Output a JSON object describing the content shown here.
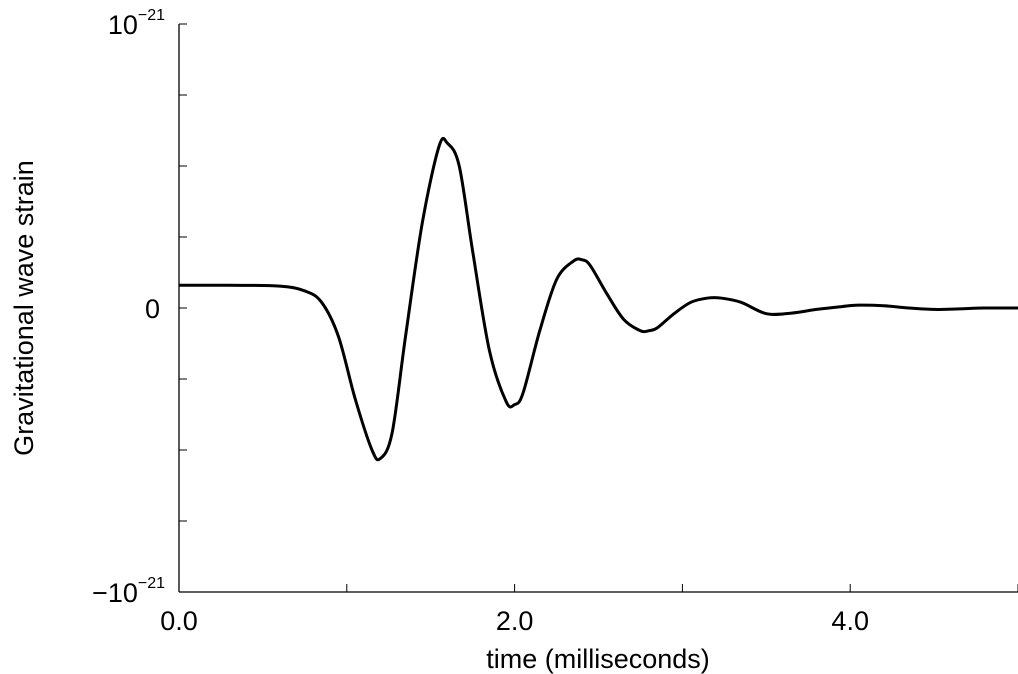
{
  "chart_data": {
    "type": "line",
    "title": "",
    "xlabel": "time (milliseconds)",
    "ylabel": "Gravitational wave strain",
    "xlim": [
      0.0,
      5.0
    ],
    "ylim": [
      -1e-21,
      1e-21
    ],
    "x_tick_labels": [
      {
        "value": 0.0,
        "label": "0.0"
      },
      {
        "value": 2.0,
        "label": "2.0"
      },
      {
        "value": 4.0,
        "label": "4.0"
      }
    ],
    "y_tick_labels": [
      {
        "value": 1e-21,
        "base": "10",
        "exponent": "−21"
      },
      {
        "value": 0,
        "base": "0",
        "exponent": ""
      },
      {
        "value": -1e-21,
        "base": "−10",
        "exponent": "−21"
      }
    ],
    "x_minor_ticks": [
      0.0,
      1.0,
      2.0,
      3.0,
      4.0,
      5.0
    ],
    "y_minor_ticks": [
      -1e-21,
      -7.5e-22,
      -5e-22,
      -2.5e-22,
      0,
      2.5e-22,
      5e-22,
      7.5e-22,
      1e-21
    ],
    "grid": false,
    "series": [
      {
        "color": "#000000",
        "x": [
          0.0,
          0.3,
          0.6,
          0.75,
          0.85,
          0.95,
          1.05,
          1.15,
          1.2,
          1.27,
          1.35,
          1.45,
          1.55,
          1.6,
          1.67,
          1.75,
          1.85,
          1.95,
          2.0,
          2.05,
          2.15,
          2.25,
          2.35,
          2.4,
          2.45,
          2.55,
          2.65,
          2.75,
          2.8,
          2.85,
          2.95,
          3.05,
          3.15,
          3.23,
          3.35,
          3.5,
          3.65,
          3.8,
          3.95,
          4.05,
          4.2,
          4.35,
          4.5,
          4.65,
          4.8,
          5.0
        ],
        "y": [
          8e-23,
          8e-23,
          7.7e-23,
          6e-23,
          2e-23,
          -1e-22,
          -3.2e-22,
          -5e-22,
          -5.3e-22,
          -4.4e-22,
          -1e-22,
          3e-22,
          5.7e-22,
          5.8e-22,
          5e-22,
          2e-22,
          -1.5e-22,
          -3.3e-22,
          -3.4e-22,
          -3e-22,
          -8e-23,
          1e-22,
          1.65e-22,
          1.7e-22,
          1.5e-22,
          5e-23,
          -4e-23,
          -8e-23,
          -8e-23,
          -7e-23,
          -2e-23,
          2e-23,
          3.5e-23,
          3.5e-23,
          2e-23,
          -2e-23,
          -1.8e-23,
          -5e-24,
          5e-24,
          1e-23,
          8e-24,
          0.0,
          -5e-24,
          -3e-24,
          0.0,
          0.0
        ]
      }
    ]
  }
}
